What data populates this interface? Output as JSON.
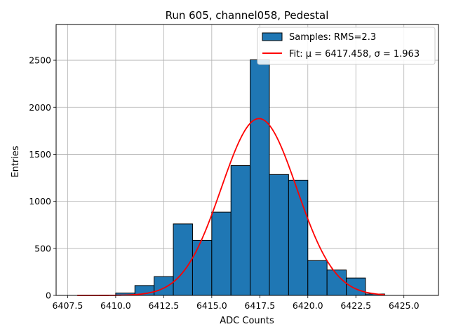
{
  "chart_data": {
    "type": "bar",
    "title": "Run 605, channel058, Pedestal",
    "xlabel": "ADC Counts",
    "ylabel": "Entries",
    "xlim": [
      6406.9,
      6426.8
    ],
    "ylim": [
      0,
      2880
    ],
    "grid": true,
    "legend_position": "top-right",
    "x_ticks": [
      6407.5,
      6410.0,
      6412.5,
      6415.0,
      6417.5,
      6420.0,
      6422.5,
      6425.0
    ],
    "x_tick_labels": [
      "6407.5",
      "6410.0",
      "6412.5",
      "6415.0",
      "6417.5",
      "6420.0",
      "6422.5",
      "6425.0"
    ],
    "y_ticks": [
      0,
      500,
      1000,
      1500,
      2000,
      2500
    ],
    "y_tick_labels": [
      "0",
      "500",
      "1000",
      "1500",
      "2000",
      "2500"
    ],
    "series": [
      {
        "name": "Samples: RMS=2.3",
        "kind": "histogram",
        "color": "#1f77b4",
        "edge_color": "#000000",
        "bin_edges": [
          6410,
          6411,
          6412,
          6413,
          6414,
          6415,
          6416,
          6417,
          6418,
          6419,
          6420,
          6421,
          6422,
          6423,
          6424
        ],
        "values": [
          25,
          105,
          200,
          760,
          585,
          885,
          1380,
          2505,
          1285,
          1225,
          370,
          270,
          185,
          15
        ]
      },
      {
        "name": "Fit: μ = 6417.458, σ = 1.963",
        "kind": "gaussian",
        "color": "#ff0000",
        "mu": 6417.458,
        "sigma": 1.963,
        "amplitude": 1880,
        "x_range": [
          6408,
          6424
        ]
      }
    ]
  }
}
